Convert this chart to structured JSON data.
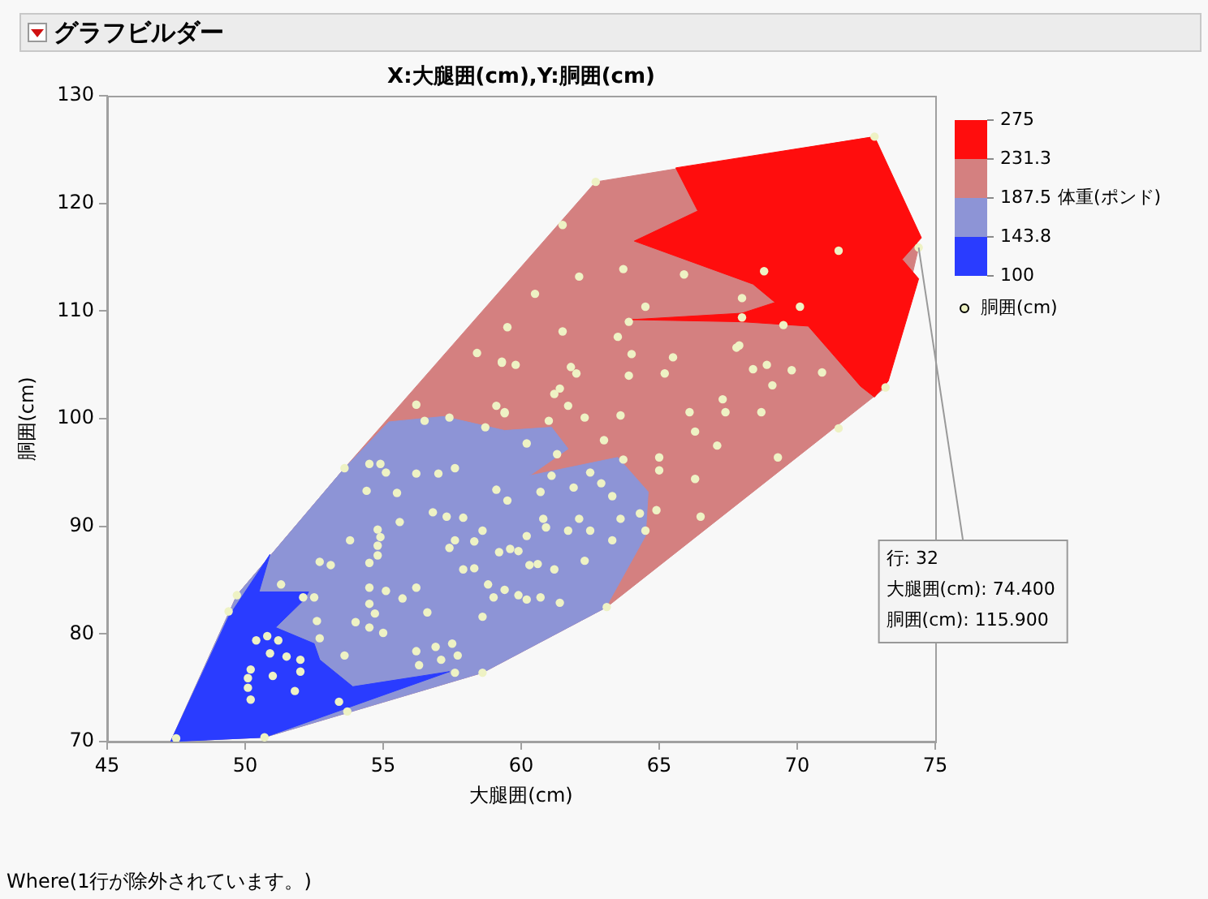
{
  "chart_data": {
    "type": "scatter",
    "title": "X:大腿囲(cm),Y:胴囲(cm)",
    "xlabel": "大腿囲(cm)",
    "ylabel": "胴囲(cm)",
    "legend_title": "体重(ポンド)",
    "legend": "right",
    "grid": false,
    "xlim": [
      45,
      75
    ],
    "xticks": [
      45,
      50,
      55,
      60,
      65,
      70,
      75
    ],
    "ylim": [
      70,
      130
    ],
    "yticks": [
      70,
      80,
      90,
      100,
      110,
      120,
      130
    ],
    "clim": [
      100,
      275
    ],
    "cticks": [
      100,
      {
        "value": 143.8,
        "label": "143.8"
      },
      {
        "value": 187.5,
        "label": "187.5"
      },
      {
        "value": 231.3,
        "label": "231.3"
      },
      275
    ],
    "colors": [
      "#2a3cff",
      "#8d94d6",
      "#d48080",
      "#ff0d0d"
    ],
    "annotations": [
      "グラフビルダー",
      "Where(1行が除外されています。)",
      {
        "text": "行: 32\n大腿囲(cm): 74.400\n胴囲(cm): 115.900",
        "x": 74.4,
        "y": 115.9
      }
    ],
    "series": [
      {
        "type": "area",
        "color": "#d48080",
        "x": [
          47.3,
          50.7,
          58.6,
          63.1,
          73.2,
          74.4,
          72.8,
          62.7,
          53.6,
          49.7
        ],
        "values": [
          70.0,
          70.4,
          76.4,
          82.5,
          102.9,
          115.9,
          126.2,
          122.0,
          95.4,
          83.6
        ]
      },
      {
        "type": "area",
        "color": "#8d94d6",
        "x": [
          55.2,
          57.2,
          59.4,
          61.1,
          61.7,
          60.3,
          63.5,
          64.6,
          64.5,
          63.2,
          63.1,
          58.6,
          50.7,
          47.3,
          49.7,
          53.6
        ],
        "values": [
          99.7,
          100.2,
          98.9,
          99.2,
          97.2,
          94.7,
          96.4,
          93.2,
          89.1,
          83.1,
          82.5,
          76.4,
          70.4,
          70.0,
          83.6,
          95.4
        ]
      },
      {
        "type": "area",
        "color": "#2a3cff",
        "x": [
          47.3,
          50.7,
          57.4,
          53.9,
          52.7,
          52.5,
          51.1,
          52.1,
          52.3,
          50.5,
          50.9,
          49.4
        ],
        "values": [
          70.0,
          70.4,
          76.5,
          75.1,
          77.6,
          79.1,
          80.6,
          83.1,
          83.9,
          83.9,
          87.4,
          81.6
        ]
      },
      {
        "type": "area",
        "color": "#ff0d0d",
        "x": [
          65.6,
          72.8,
          74.5,
          73.8,
          74.4,
          73.3,
          72.8,
          72.3,
          70.4,
          68.0,
          64.0,
          68.0,
          69.2,
          68.4,
          64.1,
          66.4
        ],
        "values": [
          123.3,
          126.2,
          116.8,
          114.8,
          113.0,
          103.5,
          102.0,
          103.0,
          108.6,
          109.0,
          109.2,
          109.8,
          110.8,
          112.5,
          116.5,
          119.3
        ]
      },
      {
        "name": "胴囲(cm)",
        "marker": "circle",
        "color": "#eef2c4",
        "x": [
          62.7,
          61.5,
          62.1,
          63.7,
          65.9,
          68.8,
          71.5,
          70.1,
          69.5,
          68.0,
          68.0,
          64.5,
          63.9,
          60.5,
          59.5,
          61.5,
          63.5,
          67.8,
          67.9,
          70.9,
          69.8,
          68.9,
          68.4,
          69.1,
          73.2,
          71.5,
          65.5,
          65.2,
          64.0,
          63.9,
          59.3,
          61.8,
          62.0,
          61.2,
          61.4,
          61.7,
          67.3,
          67.4,
          68.7,
          66.3,
          67.1,
          74.4,
          72.8,
          58.4,
          59.3,
          59.8,
          56.2,
          56.5,
          57.4,
          58.7,
          59.1,
          59.4,
          47.5,
          50.7,
          49.7,
          49.4,
          51.3,
          52.1,
          52.5,
          50.4,
          50.8,
          51.2,
          50.9,
          51.5,
          52.0,
          52.0,
          50.2,
          50.1,
          50.1,
          50.2,
          51.0,
          51.8,
          53.4,
          53.7,
          52.7,
          53.6,
          52.6,
          52.7,
          53.1,
          53.6,
          54.5,
          54.8,
          54.9,
          54.8,
          54.8,
          53.8,
          54.4,
          54.5,
          54.9,
          55.1,
          55.5,
          56.2,
          57.0,
          57.6,
          54.5,
          55.1,
          55.7,
          54.5,
          54.7,
          55.0,
          54.0,
          54.5,
          55.6,
          56.2,
          56.6,
          56.2,
          56.9,
          57.5,
          57.7,
          57.1,
          56.3,
          57.6,
          58.6,
          56.8,
          57.3,
          57.6,
          57.4,
          57.9,
          58.3,
          58.6,
          57.9,
          58.3,
          58.8,
          59.0,
          58.6,
          59.4,
          59.2,
          59.6,
          59.5,
          59.9,
          60.2,
          63.1,
          66.5,
          66.3,
          69.3,
          65.0,
          65.0,
          64.5,
          64.3,
          64.9,
          63.6,
          63.3,
          62.3,
          61.4,
          61.2,
          60.7,
          60.6,
          60.3,
          61.7,
          62.1,
          62.5,
          60.9,
          60.2,
          59.9,
          60.8,
          59.1,
          60.7,
          61.9,
          62.9,
          63.3,
          61.1,
          62.5,
          61.3,
          63.7,
          63.6,
          62.3,
          63.0,
          61.0,
          60.2,
          59.4,
          66.1
        ],
        "values": [
          122.0,
          118.0,
          113.2,
          113.9,
          113.4,
          113.7,
          115.6,
          110.4,
          108.7,
          111.2,
          109.4,
          110.4,
          109.0,
          111.6,
          108.5,
          108.1,
          107.6,
          106.6,
          106.8,
          104.3,
          104.5,
          105.0,
          104.6,
          103.1,
          102.9,
          99.1,
          105.7,
          104.2,
          106.0,
          104.0,
          105.2,
          104.8,
          104.2,
          102.3,
          102.8,
          101.2,
          101.8,
          100.6,
          100.6,
          98.8,
          97.5,
          115.9,
          126.2,
          106.1,
          105.3,
          105.0,
          101.3,
          99.8,
          100.1,
          99.2,
          101.2,
          100.5,
          70.3,
          70.4,
          83.6,
          82.1,
          84.6,
          83.4,
          83.4,
          79.4,
          79.8,
          79.4,
          78.2,
          77.9,
          77.6,
          76.5,
          76.7,
          75.9,
          75.0,
          73.9,
          76.1,
          74.7,
          73.7,
          72.8,
          79.6,
          78.0,
          81.2,
          86.7,
          86.4,
          95.4,
          86.6,
          89.7,
          89.0,
          88.2,
          87.3,
          88.7,
          93.3,
          95.8,
          95.8,
          95.0,
          93.1,
          94.9,
          94.9,
          95.4,
          84.3,
          84.0,
          83.3,
          82.8,
          81.9,
          80.1,
          81.1,
          80.6,
          90.4,
          84.3,
          82.0,
          78.4,
          78.8,
          79.1,
          78.0,
          77.6,
          77.1,
          76.4,
          76.4,
          91.3,
          90.9,
          88.7,
          88.0,
          90.8,
          88.6,
          89.6,
          86.0,
          86.1,
          84.6,
          83.4,
          81.6,
          84.1,
          87.6,
          87.9,
          92.4,
          83.6,
          83.2,
          82.5,
          90.9,
          94.4,
          96.4,
          96.4,
          95.2,
          89.6,
          91.2,
          91.5,
          90.7,
          88.7,
          86.8,
          82.9,
          86.0,
          83.4,
          86.5,
          86.4,
          89.6,
          90.7,
          89.6,
          89.9,
          89.1,
          87.7,
          90.7,
          93.4,
          93.2,
          93.6,
          94.0,
          92.8,
          94.7,
          95.0,
          96.7,
          96.2,
          100.3,
          100.1,
          98.0,
          99.8,
          97.7,
          100.6,
          100.6
        ]
      }
    ]
  }
}
